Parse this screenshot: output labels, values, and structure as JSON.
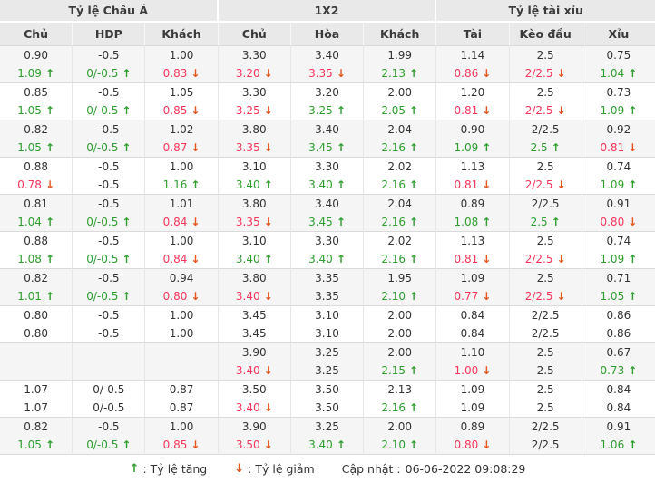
{
  "colors": {
    "up_green": "#2f9e2f",
    "down_red_arrow": "#e8541e",
    "red_text": "#f5365c",
    "header_bg": "#e9e9e9",
    "shaded_row_bg": "#f5f5f5"
  },
  "icons": {
    "up_arrow": "↑",
    "down_arrow": "↓"
  },
  "table": {
    "groups": [
      {
        "label": "Tỷ lệ Châu Á"
      },
      {
        "label": "1X2"
      },
      {
        "label": "Tỷ lệ tài xỉu"
      }
    ],
    "columns": [
      "Chủ",
      "HDP",
      "Khách",
      "Chủ",
      "Hòa",
      "Khách",
      "Tài",
      "Kèo đầu",
      "Xỉu"
    ],
    "rows": [
      [
        [
          [
            "0.90",
            "k",
            ""
          ],
          [
            "1.09",
            "g",
            "u"
          ]
        ],
        [
          [
            "-0.5",
            "k",
            ""
          ],
          [
            "0/-0.5",
            "g",
            "u"
          ]
        ],
        [
          [
            "1.00",
            "k",
            ""
          ],
          [
            "0.83",
            "r",
            "d"
          ]
        ],
        [
          [
            "3.30",
            "k",
            ""
          ],
          [
            "3.20",
            "r",
            "d"
          ]
        ],
        [
          [
            "3.40",
            "k",
            ""
          ],
          [
            "3.35",
            "r",
            "d"
          ]
        ],
        [
          [
            "1.99",
            "k",
            ""
          ],
          [
            "2.13",
            "g",
            "u"
          ]
        ],
        [
          [
            "1.14",
            "k",
            ""
          ],
          [
            "0.86",
            "r",
            "d"
          ]
        ],
        [
          [
            "2.5",
            "k",
            ""
          ],
          [
            "2/2.5",
            "r",
            "d"
          ]
        ],
        [
          [
            "0.75",
            "k",
            ""
          ],
          [
            "1.04",
            "g",
            "u"
          ]
        ]
      ],
      [
        [
          [
            "0.85",
            "k",
            ""
          ],
          [
            "1.05",
            "g",
            "u"
          ]
        ],
        [
          [
            "-0.5",
            "k",
            ""
          ],
          [
            "0/-0.5",
            "g",
            "u"
          ]
        ],
        [
          [
            "1.05",
            "k",
            ""
          ],
          [
            "0.85",
            "r",
            "d"
          ]
        ],
        [
          [
            "3.30",
            "k",
            ""
          ],
          [
            "3.25",
            "r",
            "d"
          ]
        ],
        [
          [
            "3.20",
            "k",
            ""
          ],
          [
            "3.25",
            "g",
            "u"
          ]
        ],
        [
          [
            "2.00",
            "k",
            ""
          ],
          [
            "2.05",
            "g",
            "u"
          ]
        ],
        [
          [
            "1.20",
            "k",
            ""
          ],
          [
            "0.81",
            "r",
            "d"
          ]
        ],
        [
          [
            "2.5",
            "k",
            ""
          ],
          [
            "2/2.5",
            "r",
            "d"
          ]
        ],
        [
          [
            "0.73",
            "k",
            ""
          ],
          [
            "1.09",
            "g",
            "u"
          ]
        ]
      ],
      [
        [
          [
            "0.82",
            "k",
            ""
          ],
          [
            "1.05",
            "g",
            "u"
          ]
        ],
        [
          [
            "-0.5",
            "k",
            ""
          ],
          [
            "0/-0.5",
            "g",
            "u"
          ]
        ],
        [
          [
            "1.02",
            "k",
            ""
          ],
          [
            "0.87",
            "r",
            "d"
          ]
        ],
        [
          [
            "3.80",
            "k",
            ""
          ],
          [
            "3.35",
            "r",
            "d"
          ]
        ],
        [
          [
            "3.40",
            "k",
            ""
          ],
          [
            "3.45",
            "g",
            "u"
          ]
        ],
        [
          [
            "2.04",
            "k",
            ""
          ],
          [
            "2.16",
            "g",
            "u"
          ]
        ],
        [
          [
            "0.90",
            "k",
            ""
          ],
          [
            "1.09",
            "g",
            "u"
          ]
        ],
        [
          [
            "2/2.5",
            "k",
            ""
          ],
          [
            "2.5",
            "g",
            "u"
          ]
        ],
        [
          [
            "0.92",
            "k",
            ""
          ],
          [
            "0.81",
            "r",
            "d"
          ]
        ]
      ],
      [
        [
          [
            "0.88",
            "k",
            ""
          ],
          [
            "0.78",
            "r",
            "d"
          ]
        ],
        [
          [
            "-0.5",
            "k",
            ""
          ],
          [
            "-0.5",
            "k",
            ""
          ]
        ],
        [
          [
            "1.00",
            "k",
            ""
          ],
          [
            "1.16",
            "g",
            "u"
          ]
        ],
        [
          [
            "3.10",
            "k",
            ""
          ],
          [
            "3.40",
            "g",
            "u"
          ]
        ],
        [
          [
            "3.30",
            "k",
            ""
          ],
          [
            "3.40",
            "g",
            "u"
          ]
        ],
        [
          [
            "2.02",
            "k",
            ""
          ],
          [
            "2.16",
            "g",
            "u"
          ]
        ],
        [
          [
            "1.13",
            "k",
            ""
          ],
          [
            "0.81",
            "r",
            "d"
          ]
        ],
        [
          [
            "2.5",
            "k",
            ""
          ],
          [
            "2/2.5",
            "r",
            "d"
          ]
        ],
        [
          [
            "0.74",
            "k",
            ""
          ],
          [
            "1.09",
            "g",
            "u"
          ]
        ]
      ],
      [
        [
          [
            "0.81",
            "k",
            ""
          ],
          [
            "1.04",
            "g",
            "u"
          ]
        ],
        [
          [
            "-0.5",
            "k",
            ""
          ],
          [
            "0/-0.5",
            "g",
            "u"
          ]
        ],
        [
          [
            "1.01",
            "k",
            ""
          ],
          [
            "0.84",
            "r",
            "d"
          ]
        ],
        [
          [
            "3.80",
            "k",
            ""
          ],
          [
            "3.35",
            "r",
            "d"
          ]
        ],
        [
          [
            "3.40",
            "k",
            ""
          ],
          [
            "3.45",
            "g",
            "u"
          ]
        ],
        [
          [
            "2.04",
            "k",
            ""
          ],
          [
            "2.16",
            "g",
            "u"
          ]
        ],
        [
          [
            "0.89",
            "k",
            ""
          ],
          [
            "1.08",
            "g",
            "u"
          ]
        ],
        [
          [
            "2/2.5",
            "k",
            ""
          ],
          [
            "2.5",
            "g",
            "u"
          ]
        ],
        [
          [
            "0.91",
            "k",
            ""
          ],
          [
            "0.80",
            "r",
            "d"
          ]
        ]
      ],
      [
        [
          [
            "0.88",
            "k",
            ""
          ],
          [
            "1.08",
            "g",
            "u"
          ]
        ],
        [
          [
            "-0.5",
            "k",
            ""
          ],
          [
            "0/-0.5",
            "g",
            "u"
          ]
        ],
        [
          [
            "1.00",
            "k",
            ""
          ],
          [
            "0.84",
            "r",
            "d"
          ]
        ],
        [
          [
            "3.10",
            "k",
            ""
          ],
          [
            "3.40",
            "g",
            "u"
          ]
        ],
        [
          [
            "3.30",
            "k",
            ""
          ],
          [
            "3.40",
            "g",
            "u"
          ]
        ],
        [
          [
            "2.02",
            "k",
            ""
          ],
          [
            "2.16",
            "g",
            "u"
          ]
        ],
        [
          [
            "1.13",
            "k",
            ""
          ],
          [
            "0.81",
            "r",
            "d"
          ]
        ],
        [
          [
            "2.5",
            "k",
            ""
          ],
          [
            "2/2.5",
            "r",
            "d"
          ]
        ],
        [
          [
            "0.74",
            "k",
            ""
          ],
          [
            "1.09",
            "g",
            "u"
          ]
        ]
      ],
      [
        [
          [
            "0.82",
            "k",
            ""
          ],
          [
            "1.01",
            "g",
            "u"
          ]
        ],
        [
          [
            "-0.5",
            "k",
            ""
          ],
          [
            "0/-0.5",
            "g",
            "u"
          ]
        ],
        [
          [
            "0.94",
            "k",
            ""
          ],
          [
            "0.80",
            "r",
            "d"
          ]
        ],
        [
          [
            "3.80",
            "k",
            ""
          ],
          [
            "3.40",
            "r",
            "d"
          ]
        ],
        [
          [
            "3.35",
            "k",
            ""
          ],
          [
            "3.35",
            "k",
            ""
          ]
        ],
        [
          [
            "1.95",
            "k",
            ""
          ],
          [
            "2.10",
            "g",
            "u"
          ]
        ],
        [
          [
            "1.09",
            "k",
            ""
          ],
          [
            "0.77",
            "r",
            "d"
          ]
        ],
        [
          [
            "2.5",
            "k",
            ""
          ],
          [
            "2/2.5",
            "r",
            "d"
          ]
        ],
        [
          [
            "0.71",
            "k",
            ""
          ],
          [
            "1.05",
            "g",
            "u"
          ]
        ]
      ],
      [
        [
          [
            "0.80",
            "k",
            ""
          ],
          [
            "0.80",
            "k",
            ""
          ]
        ],
        [
          [
            "-0.5",
            "k",
            ""
          ],
          [
            "-0.5",
            "k",
            ""
          ]
        ],
        [
          [
            "1.00",
            "k",
            ""
          ],
          [
            "1.00",
            "k",
            ""
          ]
        ],
        [
          [
            "3.45",
            "k",
            ""
          ],
          [
            "3.45",
            "k",
            ""
          ]
        ],
        [
          [
            "3.10",
            "k",
            ""
          ],
          [
            "3.10",
            "k",
            ""
          ]
        ],
        [
          [
            "2.00",
            "k",
            ""
          ],
          [
            "2.00",
            "k",
            ""
          ]
        ],
        [
          [
            "0.84",
            "k",
            ""
          ],
          [
            "0.84",
            "k",
            ""
          ]
        ],
        [
          [
            "2/2.5",
            "k",
            ""
          ],
          [
            "2/2.5",
            "k",
            ""
          ]
        ],
        [
          [
            "0.86",
            "k",
            ""
          ],
          [
            "0.86",
            "k",
            ""
          ]
        ]
      ],
      [
        [
          [
            "",
            "k",
            ""
          ],
          [
            "",
            "k",
            ""
          ]
        ],
        [
          [
            "",
            "k",
            ""
          ],
          [
            "",
            "k",
            ""
          ]
        ],
        [
          [
            "",
            "k",
            ""
          ],
          [
            "",
            "k",
            ""
          ]
        ],
        [
          [
            "3.90",
            "k",
            ""
          ],
          [
            "3.40",
            "r",
            "d"
          ]
        ],
        [
          [
            "3.25",
            "k",
            ""
          ],
          [
            "3.25",
            "k",
            ""
          ]
        ],
        [
          [
            "2.00",
            "k",
            ""
          ],
          [
            "2.15",
            "g",
            "u"
          ]
        ],
        [
          [
            "1.10",
            "k",
            ""
          ],
          [
            "1.00",
            "r",
            "d"
          ]
        ],
        [
          [
            "2.5",
            "k",
            ""
          ],
          [
            "2.5",
            "k",
            ""
          ]
        ],
        [
          [
            "0.67",
            "k",
            ""
          ],
          [
            "0.73",
            "g",
            "u"
          ]
        ]
      ],
      [
        [
          [
            "1.07",
            "k",
            ""
          ],
          [
            "1.07",
            "k",
            ""
          ]
        ],
        [
          [
            "0/-0.5",
            "k",
            ""
          ],
          [
            "0/-0.5",
            "k",
            ""
          ]
        ],
        [
          [
            "0.87",
            "k",
            ""
          ],
          [
            "0.87",
            "k",
            ""
          ]
        ],
        [
          [
            "3.50",
            "k",
            ""
          ],
          [
            "3.40",
            "r",
            "d"
          ]
        ],
        [
          [
            "3.50",
            "k",
            ""
          ],
          [
            "3.50",
            "k",
            ""
          ]
        ],
        [
          [
            "2.13",
            "k",
            ""
          ],
          [
            "2.16",
            "g",
            "u"
          ]
        ],
        [
          [
            "1.09",
            "k",
            ""
          ],
          [
            "1.09",
            "k",
            ""
          ]
        ],
        [
          [
            "2.5",
            "k",
            ""
          ],
          [
            "2.5",
            "k",
            ""
          ]
        ],
        [
          [
            "0.84",
            "k",
            ""
          ],
          [
            "0.84",
            "k",
            ""
          ]
        ]
      ],
      [
        [
          [
            "0.82",
            "k",
            ""
          ],
          [
            "1.05",
            "g",
            "u"
          ]
        ],
        [
          [
            "-0.5",
            "k",
            ""
          ],
          [
            "0/-0.5",
            "g",
            "u"
          ]
        ],
        [
          [
            "1.00",
            "k",
            ""
          ],
          [
            "0.85",
            "r",
            "d"
          ]
        ],
        [
          [
            "3.90",
            "k",
            ""
          ],
          [
            "3.50",
            "r",
            "d"
          ]
        ],
        [
          [
            "3.25",
            "k",
            ""
          ],
          [
            "3.40",
            "g",
            "u"
          ]
        ],
        [
          [
            "2.00",
            "k",
            ""
          ],
          [
            "2.10",
            "g",
            "u"
          ]
        ],
        [
          [
            "0.89",
            "k",
            ""
          ],
          [
            "0.80",
            "r",
            "d"
          ]
        ],
        [
          [
            "2/2.5",
            "k",
            ""
          ],
          [
            "2/2.5",
            "k",
            ""
          ]
        ],
        [
          [
            "0.91",
            "k",
            ""
          ],
          [
            "1.06",
            "g",
            "u"
          ]
        ]
      ]
    ]
  },
  "footer": {
    "legend_up": ": Tỷ lệ tăng",
    "legend_down": ": Tỷ lệ giảm",
    "update_label": "Cập nhật :",
    "update_time": "06-06-2022 09:08:29"
  }
}
